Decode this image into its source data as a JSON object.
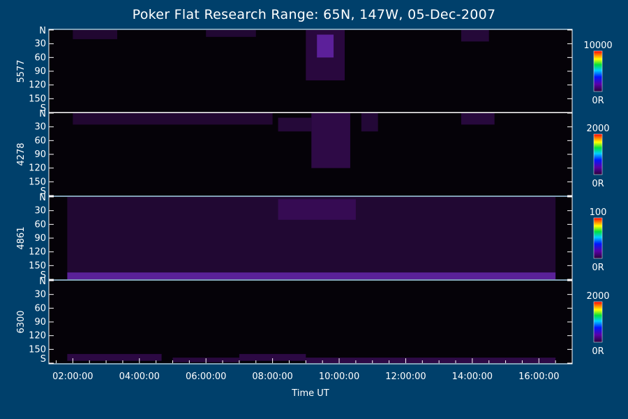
{
  "chart_data": {
    "type": "heatmap",
    "title": "Poker Flat Research Range: 65N, 147W, 05-Dec-2007",
    "xlabel": "Time UT",
    "x_ticks": [
      "02:00:00",
      "04:00:00",
      "06:00:00",
      "08:00:00",
      "10:00:00",
      "12:00:00",
      "14:00:00",
      "16:00:00"
    ],
    "y_ticks": [
      "N",
      "30",
      "60",
      "90",
      "120",
      "150",
      "S"
    ],
    "panels": [
      {
        "wavelength": "5577",
        "colorbar": {
          "max_label": "10000",
          "min_label": "0R"
        },
        "features": [
          {
            "start": "02:00",
            "end": "03:20",
            "from": 0,
            "to": 20,
            "intensity": 0.3
          },
          {
            "start": "06:00",
            "end": "07:30",
            "from": 0,
            "to": 15,
            "intensity": 0.35
          },
          {
            "start": "09:00",
            "end": "10:10",
            "from": 0,
            "to": 110,
            "intensity": 0.55
          },
          {
            "start": "09:20",
            "end": "09:50",
            "from": 10,
            "to": 60,
            "intensity": 0.75
          },
          {
            "start": "13:40",
            "end": "14:30",
            "from": 0,
            "to": 25,
            "intensity": 0.45
          }
        ]
      },
      {
        "wavelength": "4278",
        "colorbar": {
          "max_label": "2000",
          "min_label": "0R"
        },
        "features": [
          {
            "start": "02:00",
            "end": "08:00",
            "from": 0,
            "to": 25,
            "intensity": 0.3
          },
          {
            "start": "08:10",
            "end": "09:10",
            "from": 10,
            "to": 40,
            "intensity": 0.45
          },
          {
            "start": "09:10",
            "end": "10:20",
            "from": 0,
            "to": 120,
            "intensity": 0.7
          },
          {
            "start": "10:40",
            "end": "11:10",
            "from": 0,
            "to": 40,
            "intensity": 0.4
          },
          {
            "start": "13:40",
            "end": "14:40",
            "from": 0,
            "to": 25,
            "intensity": 0.5
          }
        ]
      },
      {
        "wavelength": "4861",
        "colorbar": {
          "max_label": "100",
          "min_label": "0R"
        },
        "features": [
          {
            "start": "01:50",
            "end": "16:30",
            "from": 0,
            "to": 180,
            "intensity": 0.35
          },
          {
            "start": "01:50",
            "end": "16:30",
            "from": 165,
            "to": 180,
            "intensity": 0.8
          },
          {
            "start": "08:10",
            "end": "10:30",
            "from": 5,
            "to": 50,
            "intensity": 0.55
          }
        ]
      },
      {
        "wavelength": "6300",
        "colorbar": {
          "max_label": "2000",
          "min_label": "0R"
        },
        "features": [
          {
            "start": "01:50",
            "end": "04:40",
            "from": 160,
            "to": 175,
            "intensity": 0.65
          },
          {
            "start": "05:00",
            "end": "07:00",
            "from": 168,
            "to": 178,
            "intensity": 0.55
          },
          {
            "start": "07:00",
            "end": "09:00",
            "from": 160,
            "to": 175,
            "intensity": 0.65
          },
          {
            "start": "09:00",
            "end": "16:30",
            "from": 168,
            "to": 180,
            "intensity": 0.7
          }
        ]
      }
    ]
  }
}
